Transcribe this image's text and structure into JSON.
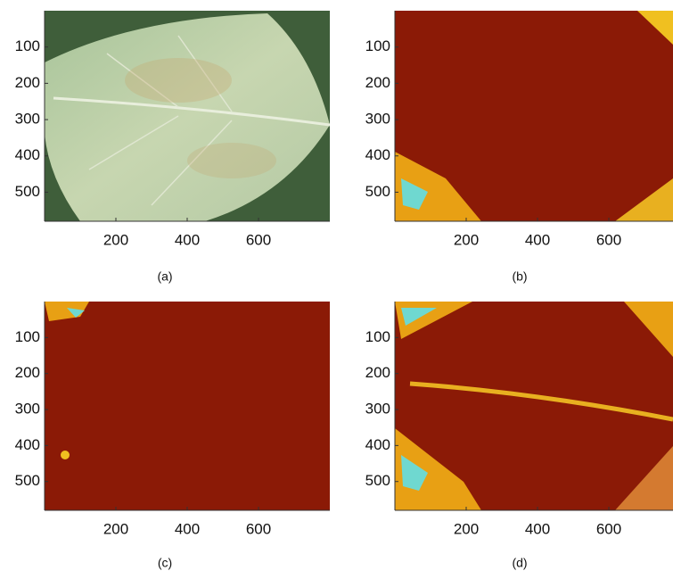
{
  "panels": [
    {
      "label": "(a)",
      "xlim": [
        0,
        800
      ],
      "ylim": [
        0,
        580
      ],
      "xticks": [
        200,
        400,
        600
      ],
      "yticks": [
        100,
        200,
        300,
        400,
        500
      ]
    },
    {
      "label": "(b)",
      "xlim": [
        0,
        800
      ],
      "ylim": [
        0,
        580
      ],
      "xticks": [
        200,
        400,
        600
      ],
      "yticks": [
        100,
        200,
        300,
        400,
        500
      ]
    },
    {
      "label": "(c)",
      "xlim": [
        0,
        800
      ],
      "ylim": [
        0,
        580
      ],
      "xticks": [
        200,
        400,
        600
      ],
      "yticks": [
        100,
        200,
        300,
        400,
        500
      ]
    },
    {
      "label": "(d)",
      "xlim": [
        0,
        800
      ],
      "ylim": [
        0,
        580
      ],
      "xticks": [
        200,
        400,
        600
      ],
      "yticks": [
        100,
        200,
        300,
        400,
        500
      ]
    }
  ]
}
